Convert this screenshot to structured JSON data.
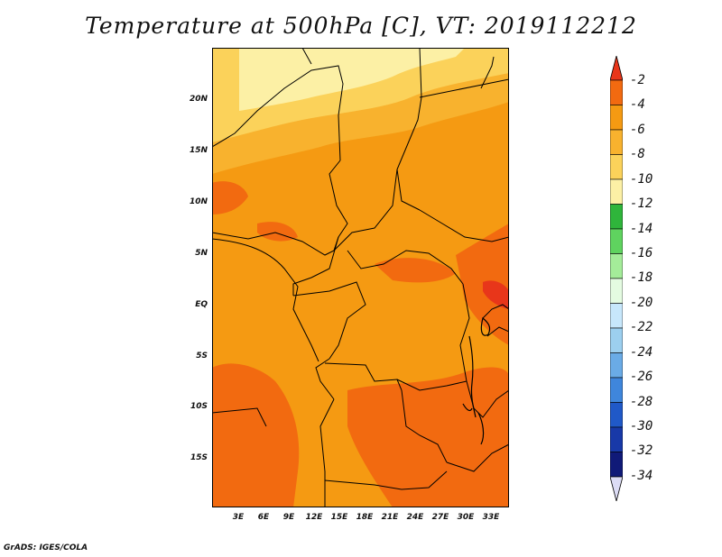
{
  "title": "Temperature at 500hPa [C], VT: 2019112212",
  "footer": "GrADS: IGES/COLA",
  "map": {
    "y_ticks": [
      "20N",
      "15N",
      "10N",
      "5N",
      "EQ",
      "5S",
      "10S",
      "15S"
    ],
    "x_ticks": [
      "3E",
      "6E",
      "9E",
      "12E",
      "15E",
      "18E",
      "21E",
      "24E",
      "27E",
      "30E",
      "33E"
    ]
  },
  "colorbar": {
    "labels": [
      "-2",
      "-4",
      "-6",
      "-8",
      "-10",
      "-12",
      "-14",
      "-16",
      "-18",
      "-20",
      "-22",
      "-24",
      "-26",
      "-28",
      "-30",
      "-32",
      "-34"
    ],
    "colors": [
      "#e8361a",
      "#f26a10",
      "#f59a12",
      "#f8b22e",
      "#fbd25a",
      "#fcf0a5",
      "#2fb53b",
      "#5fd35f",
      "#a4ec99",
      "#e4fbe1",
      "#c7e7fb",
      "#9ccfef",
      "#6aabe6",
      "#3f86dc",
      "#2059c8",
      "#1839a8",
      "#101a78",
      "#dcdcf5"
    ]
  }
}
